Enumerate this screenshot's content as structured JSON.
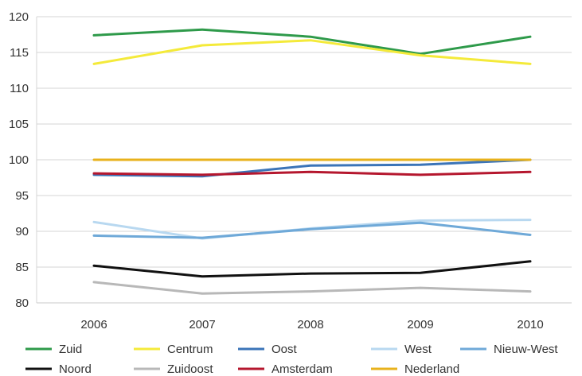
{
  "chart_data": {
    "type": "line",
    "title": "",
    "xlabel": "",
    "ylabel": "",
    "x": [
      "2006",
      "2007",
      "2008",
      "2009",
      "2010"
    ],
    "ylim": [
      80,
      120
    ],
    "yticks": [
      80,
      85,
      90,
      95,
      100,
      105,
      110,
      115,
      120
    ],
    "grid": "horizontal",
    "legend_position": "bottom",
    "series": [
      {
        "name": "Zuid",
        "color": "#2e9a4a",
        "values": [
          117.4,
          118.2,
          117.2,
          114.8,
          117.2
        ]
      },
      {
        "name": "Centrum",
        "color": "#f4ea3a",
        "values": [
          113.4,
          116.0,
          116.7,
          114.6,
          113.4
        ]
      },
      {
        "name": "Oost",
        "color": "#3b74b8",
        "values": [
          97.9,
          97.7,
          99.2,
          99.3,
          100.0
        ]
      },
      {
        "name": "West",
        "color": "#b8d8f0",
        "values": [
          91.3,
          89.0,
          90.4,
          91.5,
          91.6
        ]
      },
      {
        "name": "Nieuw-West",
        "color": "#6fa9d8",
        "values": [
          89.4,
          89.1,
          90.3,
          91.2,
          89.5
        ]
      },
      {
        "name": "Noord",
        "color": "#111111",
        "values": [
          85.2,
          83.7,
          84.1,
          84.2,
          85.8
        ]
      },
      {
        "name": "Zuidoost",
        "color": "#b8b8b8",
        "values": [
          82.9,
          81.3,
          81.6,
          82.1,
          81.6
        ]
      },
      {
        "name": "Amsterdam",
        "color": "#b5172e",
        "values": [
          98.1,
          97.9,
          98.3,
          97.9,
          98.3
        ]
      },
      {
        "name": "Nederland",
        "color": "#e8b21c",
        "values": [
          100.0,
          100.0,
          100.0,
          100.0,
          100.0
        ]
      }
    ]
  }
}
